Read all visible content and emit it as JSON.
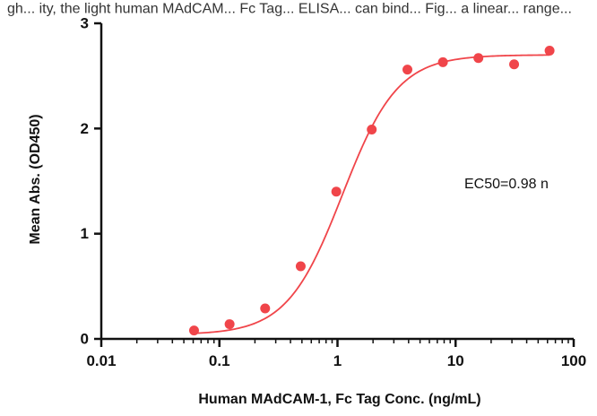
{
  "header_text": "gh... ity, the light human MAdCAM... Fc Tag... ELISA... can bind... Fig... a linear... range...",
  "chart_data": {
    "type": "scatter",
    "title": "",
    "xlabel": "Human MAdCAM-1, Fc Tag Conc. (ng/mL)",
    "ylabel": "Mean Abs. (OD450)",
    "xscale": "log",
    "xlim": [
      0.01,
      100
    ],
    "ylim": [
      0,
      3
    ],
    "x_ticks": [
      0.01,
      0.1,
      1,
      10,
      100
    ],
    "x_tick_labels": [
      "0.01",
      "0.1",
      "1",
      "10",
      "100"
    ],
    "y_ticks": [
      0,
      1,
      2,
      3
    ],
    "y_tick_labels": [
      "0",
      "1",
      "2",
      "3"
    ],
    "grid": false,
    "color": "#f0454a",
    "points": {
      "x": [
        0.061,
        0.122,
        0.244,
        0.488,
        0.977,
        1.95,
        3.91,
        7.81,
        15.6,
        31.3,
        62.5
      ],
      "y": [
        0.08,
        0.14,
        0.29,
        0.69,
        1.4,
        1.99,
        2.56,
        2.63,
        2.67,
        2.61,
        2.74
      ]
    },
    "fit": {
      "model": "4PL",
      "bottom": 0.04,
      "top": 2.7,
      "ec50": 1.1,
      "hill": 1.85
    },
    "annotation": "EC50=0.98 n"
  }
}
